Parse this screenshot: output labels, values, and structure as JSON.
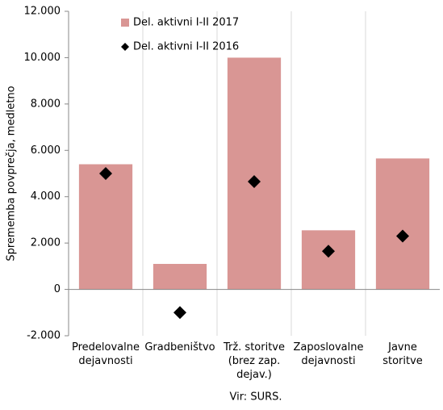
{
  "chart_data": {
    "type": "bar",
    "y_label": "Sprememba povprečja, medletno",
    "source": "Vir: SURS.",
    "categories": [
      "Predelovalne\ndejavnosti",
      "Gradbeništvo",
      "Trž. storitve\n(brez zap.\ndejav.)",
      "Zaposlovalne\ndejavnosti",
      "Javne\nstoritve"
    ],
    "series": [
      {
        "name": "Del. aktivni I-II 2017",
        "color": "#d99694",
        "marker": "bar",
        "values": [
          5400,
          1100,
          10000,
          2550,
          5650
        ]
      },
      {
        "name": "Del. aktivni I-II 2016",
        "color": "#000000",
        "marker": "diamond",
        "values": [
          5000,
          -1000,
          4650,
          1650,
          2300
        ]
      }
    ],
    "ylim": [
      -2000,
      12000
    ],
    "yticks": [
      {
        "value": -2000,
        "label": "-2.000"
      },
      0,
      {
        "value": 2000,
        "label": "2.000"
      },
      {
        "value": 4000,
        "label": "4.000"
      },
      {
        "value": 6000,
        "label": "6.000"
      },
      {
        "value": 8000,
        "label": "8.000"
      },
      {
        "value": 10000,
        "label": "10.000"
      },
      {
        "value": 12000,
        "label": "12.000"
      }
    ],
    "legend": "top"
  }
}
